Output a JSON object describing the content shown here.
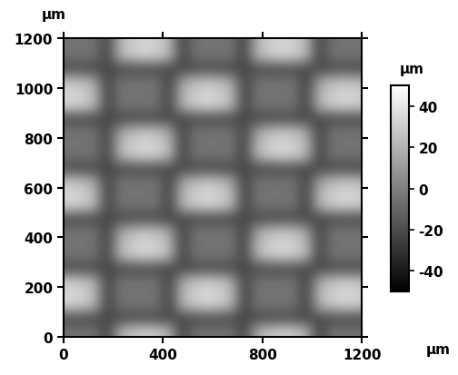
{
  "chart_data": {
    "type": "heatmap",
    "xlabel": "µm",
    "ylabel": "µm",
    "xlim": [
      0,
      1200
    ],
    "ylim": [
      0,
      1200
    ],
    "xticks": [
      0,
      400,
      800,
      1200
    ],
    "yticks": [
      0,
      200,
      400,
      600,
      800,
      1000,
      1200
    ],
    "color": "gray",
    "colorbar": {
      "label": "µm",
      "range": [
        -50,
        50
      ],
      "ticks": [
        -40,
        -20,
        0,
        20,
        40
      ]
    },
    "cells": [
      [
        -5,
        -5,
        -5,
        -25,
        17,
        27,
        31,
        28,
        19,
        -25,
        -5,
        -5,
        -5,
        -5,
        -25,
        17,
        27,
        31,
        28,
        19,
        -25,
        -5,
        -5,
        -5
      ],
      [
        -22,
        -22,
        -22,
        -22,
        -22,
        -22,
        -22,
        -22,
        -22,
        -22,
        -22,
        -22,
        -22,
        -22,
        -22,
        -22,
        -22,
        -22,
        -22,
        -22,
        -22,
        -22,
        -22,
        -22
      ],
      [
        31,
        28,
        19,
        -25,
        -5,
        -5,
        -5,
        -5,
        -25,
        17,
        27,
        31,
        28,
        19,
        -25,
        -5,
        -5,
        -5,
        -5,
        -25,
        17,
        27,
        31,
        28
      ],
      [
        35,
        32,
        23,
        -25,
        -5,
        -5,
        -5,
        -5,
        -25,
        21,
        31,
        35,
        32,
        23,
        -25,
        -5,
        -5,
        -5,
        -5,
        -25,
        21,
        31,
        35,
        32
      ],
      [
        29,
        26,
        17,
        -25,
        -5,
        -5,
        -5,
        -5,
        -25,
        15,
        25,
        29,
        26,
        17,
        -25,
        -5,
        -5,
        -5,
        -5,
        -25,
        15,
        25,
        29,
        26
      ],
      [
        -22,
        -22,
        -22,
        -22,
        -22,
        -22,
        -22,
        -22,
        -22,
        -22,
        -22,
        -22,
        -22,
        -22,
        -22,
        -22,
        -22,
        -22,
        -22,
        -22,
        -22,
        -22,
        -22,
        -22
      ],
      [
        -5,
        -5,
        -5,
        -25,
        19,
        29,
        33,
        30,
        21,
        -25,
        -5,
        -5,
        -5,
        -5,
        -25,
        19,
        29,
        33,
        30,
        21,
        -25,
        -5,
        -5,
        -5
      ],
      [
        -5,
        -5,
        -5,
        -25,
        20,
        30,
        34,
        31,
        22,
        -25,
        -5,
        -5,
        -5,
        -5,
        -25,
        20,
        30,
        34,
        31,
        22,
        -25,
        -5,
        -5,
        -5
      ],
      [
        -5,
        -5,
        -5,
        -25,
        12,
        22,
        26,
        23,
        14,
        -25,
        -5,
        -5,
        -5,
        -5,
        -25,
        12,
        22,
        26,
        23,
        14,
        -25,
        -5,
        -5,
        -5
      ],
      [
        -22,
        -22,
        -22,
        -22,
        -22,
        -22,
        -22,
        -22,
        -22,
        -22,
        -22,
        -22,
        -22,
        -22,
        -22,
        -22,
        -22,
        -22,
        -22,
        -22,
        -22,
        -22,
        -22,
        -22
      ],
      [
        33,
        30,
        21,
        -25,
        -5,
        -5,
        -5,
        -5,
        -25,
        19,
        29,
        33,
        30,
        21,
        -25,
        -5,
        -5,
        -5,
        -5,
        -25,
        19,
        29,
        33,
        30
      ],
      [
        34,
        31,
        22,
        -25,
        -5,
        -5,
        -5,
        -5,
        -25,
        20,
        30,
        34,
        31,
        22,
        -25,
        -5,
        -5,
        -5,
        -5,
        -25,
        20,
        30,
        34,
        31
      ],
      [
        26,
        23,
        14,
        -25,
        -5,
        -5,
        -5,
        -5,
        -25,
        12,
        22,
        26,
        23,
        14,
        -25,
        -5,
        -5,
        -5,
        -5,
        -25,
        12,
        22,
        26,
        23
      ],
      [
        -22,
        -22,
        -22,
        -22,
        -22,
        -22,
        -22,
        -22,
        -22,
        -22,
        -22,
        -22,
        -22,
        -22,
        -22,
        -22,
        -22,
        -22,
        -22,
        -22,
        -22,
        -22,
        -22,
        -22
      ],
      [
        -5,
        -5,
        -5,
        -25,
        19,
        29,
        33,
        30,
        21,
        -25,
        -5,
        -5,
        -5,
        -5,
        -25,
        19,
        29,
        33,
        30,
        21,
        -25,
        -5,
        -5,
        -5
      ],
      [
        -5,
        -5,
        -5,
        -25,
        20,
        30,
        34,
        31,
        22,
        -25,
        -5,
        -5,
        -5,
        -5,
        -25,
        20,
        30,
        34,
        31,
        22,
        -25,
        -5,
        -5,
        -5
      ],
      [
        -5,
        -5,
        -5,
        -25,
        12,
        22,
        26,
        23,
        14,
        -25,
        -5,
        -5,
        -5,
        -5,
        -25,
        12,
        22,
        26,
        23,
        14,
        -25,
        -5,
        -5,
        -5
      ],
      [
        -22,
        -22,
        -22,
        -22,
        -22,
        -22,
        -22,
        -22,
        -22,
        -22,
        -22,
        -22,
        -22,
        -22,
        -22,
        -22,
        -22,
        -22,
        -22,
        -22,
        -22,
        -22,
        -22,
        -22
      ],
      [
        33,
        30,
        21,
        -25,
        -5,
        -5,
        -5,
        -5,
        -25,
        19,
        29,
        33,
        30,
        21,
        -25,
        -5,
        -5,
        -5,
        -5,
        -25,
        19,
        29,
        33,
        30
      ],
      [
        34,
        31,
        22,
        -25,
        -5,
        -5,
        -5,
        -5,
        -25,
        20,
        30,
        34,
        31,
        22,
        -25,
        -5,
        -5,
        -5,
        -5,
        -25,
        20,
        30,
        34,
        31
      ],
      [
        26,
        23,
        14,
        -25,
        -5,
        -5,
        -5,
        -5,
        -25,
        12,
        22,
        26,
        23,
        14,
        -25,
        -5,
        -5,
        -5,
        -5,
        -25,
        12,
        22,
        26,
        23
      ],
      [
        -22,
        -22,
        -22,
        -22,
        -22,
        -22,
        -22,
        -22,
        -22,
        -22,
        -22,
        -22,
        -22,
        -22,
        -22,
        -22,
        -22,
        -22,
        -22,
        -22,
        -22,
        -22,
        -22,
        -22
      ],
      [
        -5,
        -5,
        -5,
        -25,
        20,
        30,
        34,
        31,
        22,
        -25,
        -5,
        -5,
        -5,
        -5,
        -25,
        20,
        30,
        34,
        31,
        22,
        -25,
        -5,
        -5,
        -5
      ],
      [
        -5,
        -5,
        -5,
        -25,
        19,
        29,
        33,
        30,
        21,
        -25,
        -5,
        -5,
        -5,
        -5,
        -25,
        19,
        29,
        33,
        30,
        21,
        -25,
        -5,
        -5,
        -5
      ]
    ]
  }
}
